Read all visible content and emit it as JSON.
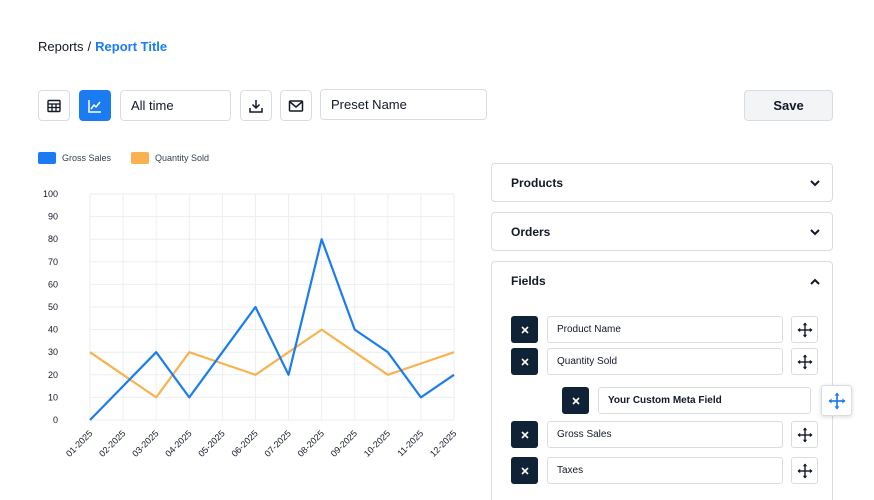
{
  "breadcrumb": {
    "parent": "Reports",
    "separator": "/",
    "current": "Report Title"
  },
  "toolbar": {
    "range_value": "All time",
    "preset_value": "Preset Name",
    "save_label": "Save",
    "icons": [
      "table-icon",
      "line-chart-icon",
      "download-icon",
      "mail-icon"
    ]
  },
  "colors": {
    "accent": "#1a7cf0",
    "secondary": "#f8b24f",
    "dark": "#0f2236"
  },
  "legend": {
    "series1": "Gross Sales",
    "series2": "Quantity Sold"
  },
  "chart_data": {
    "type": "line",
    "x": [
      "01-2025",
      "02-2025",
      "03-2025",
      "04-2025",
      "05-2025",
      "06-2025",
      "07-2025",
      "08-2025",
      "09-2025",
      "10-2025",
      "11-2025",
      "12-2025"
    ],
    "series": [
      {
        "name": "Gross Sales",
        "color": "#1a7cf0",
        "values": [
          0,
          15,
          30,
          10,
          30,
          50,
          20,
          80,
          40,
          30,
          10,
          20
        ]
      },
      {
        "name": "Quantity Sold",
        "color": "#f8b24f",
        "values": [
          30,
          20,
          10,
          30,
          25,
          20,
          30,
          40,
          30,
          20,
          25,
          30
        ]
      }
    ],
    "y_ticks": [
      "0",
      "10",
      "20",
      "30",
      "40",
      "50",
      "60",
      "70",
      "80",
      "90",
      "100"
    ],
    "ylim": [
      0,
      100
    ],
    "grid": true,
    "legend_position": "top-left"
  },
  "panels": {
    "products": "Products",
    "orders": "Orders",
    "fields": "Fields"
  },
  "fields": [
    "Product Name",
    "Quantity Sold",
    "Your Custom Meta Field",
    "Gross Sales",
    "Taxes"
  ]
}
